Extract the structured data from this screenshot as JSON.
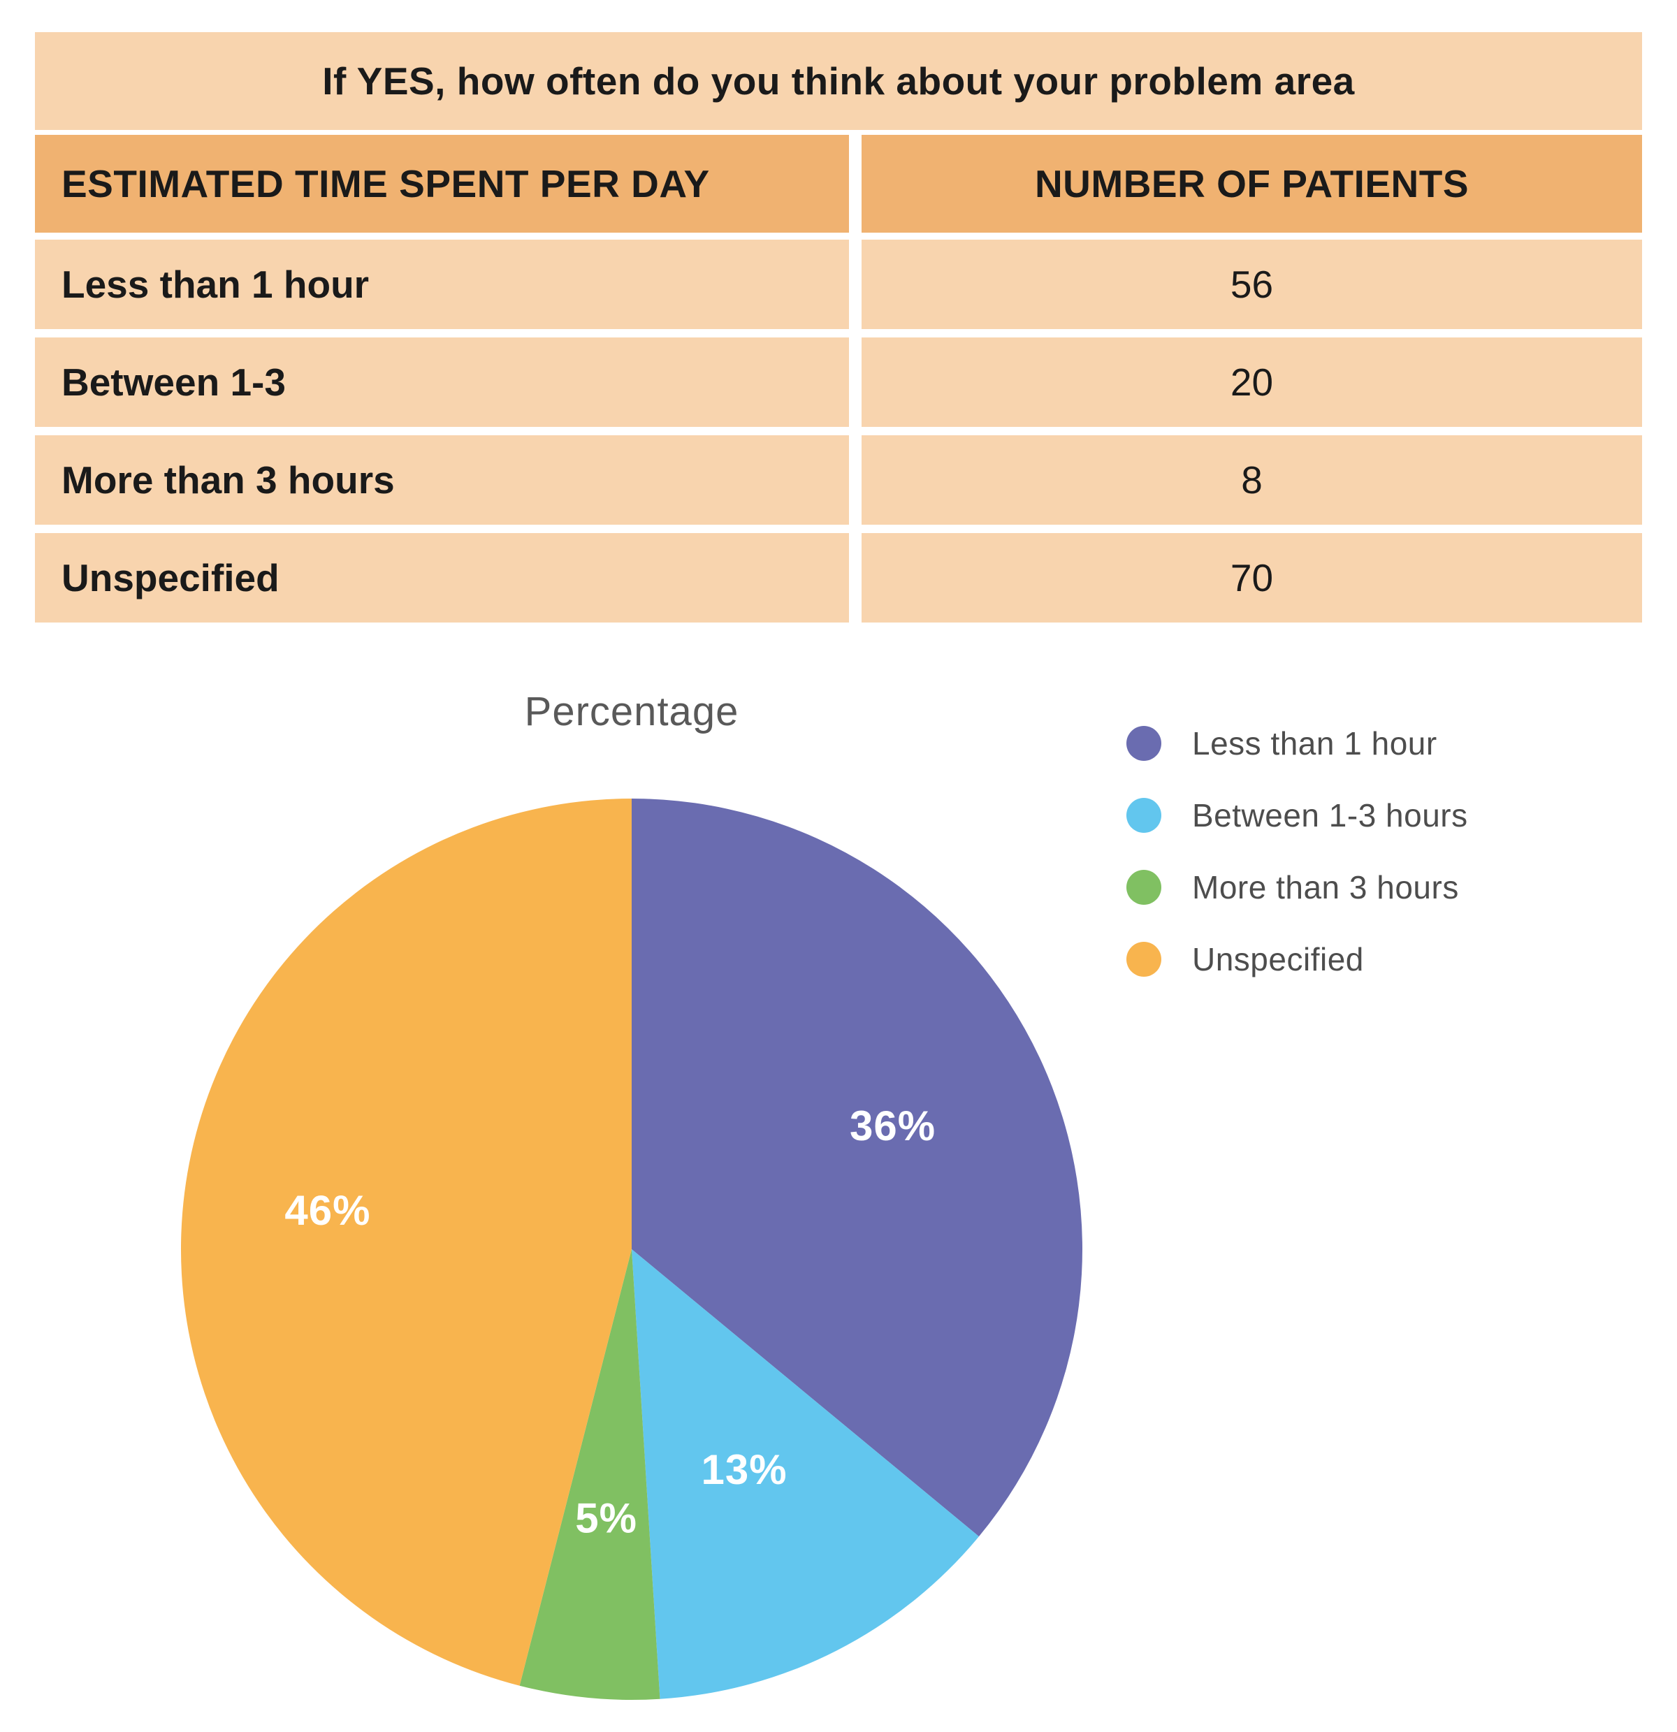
{
  "table": {
    "title": "If YES, how often do you think about your problem area",
    "columns": [
      "ESTIMATED TIME SPENT PER DAY",
      "NUMBER OF PATIENTS"
    ],
    "rows": [
      {
        "label": "Less than 1 hour",
        "value": "56"
      },
      {
        "label": "Between 1-3",
        "value": "20"
      },
      {
        "label": "More than 3 hours",
        "value": "8"
      },
      {
        "label": "Unspecified",
        "value": "70"
      }
    ],
    "colors": {
      "header_bg": "#F0B271",
      "row_bg": "#F8D4AE",
      "text": "#1A1A1A"
    }
  },
  "chart_data": {
    "type": "pie",
    "title": "Percentage",
    "legend_position": "right",
    "start_angle_deg": 0,
    "direction": "clockwise",
    "slices": [
      {
        "name": "Less than 1 hour",
        "value_pct": 36,
        "count": 56,
        "label": "36%",
        "color": "#6A6CB0",
        "label_r": 0.64
      },
      {
        "name": "Between 1-3 hours",
        "value_pct": 13,
        "count": 20,
        "label": "13%",
        "color": "#62C6EE",
        "label_r": 0.55
      },
      {
        "name": "More than 3 hours",
        "value_pct": 5,
        "count": 8,
        "label": "5%",
        "color": "#80C062",
        "label_r": 0.6
      },
      {
        "name": "Unspecified",
        "value_pct": 46,
        "count": 70,
        "label": "46%",
        "color": "#F8B44E",
        "label_r": 0.68
      }
    ],
    "slice_label_color": "#FFFFFF"
  }
}
